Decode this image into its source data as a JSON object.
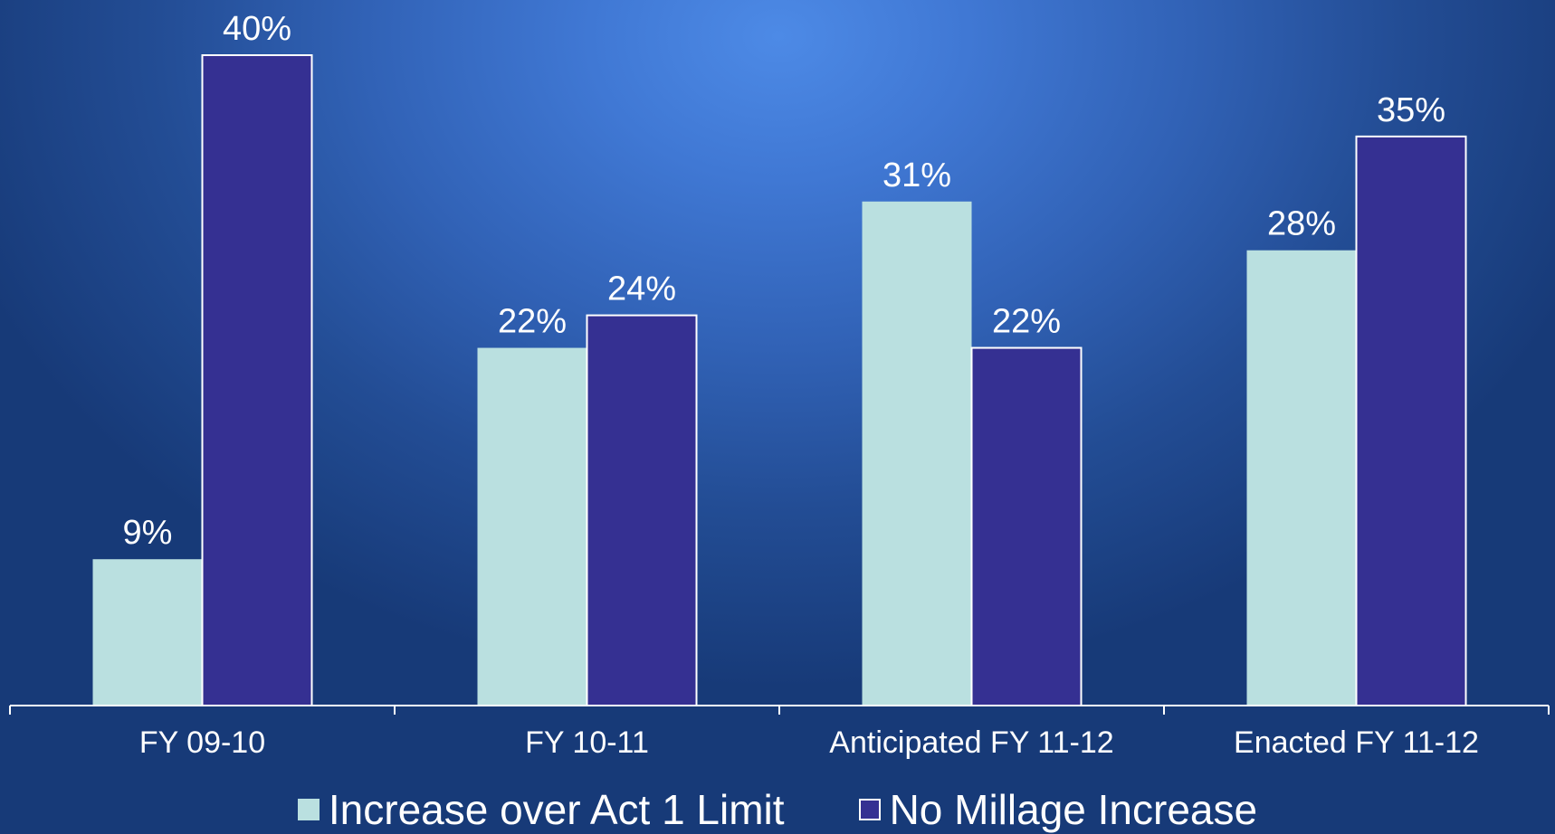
{
  "chart_data": {
    "type": "bar",
    "categories": [
      "FY 09-10",
      "FY 10-11",
      "Anticipated FY 11-12",
      "Enacted FY 11-12"
    ],
    "series": [
      {
        "name": "Increase over Act 1 Limit",
        "values": [
          9,
          22,
          31,
          28
        ],
        "labels": [
          "9%",
          "22%",
          "31%",
          "28%"
        ],
        "color": "#bae0e0"
      },
      {
        "name": "No Millage Increase",
        "values": [
          40,
          24,
          22,
          35
        ],
        "labels": [
          "40%",
          "24%",
          "22%",
          "35%"
        ],
        "color": "#353092"
      }
    ],
    "ylim": [
      0,
      40
    ],
    "grid": false,
    "legend_position": "bottom"
  }
}
